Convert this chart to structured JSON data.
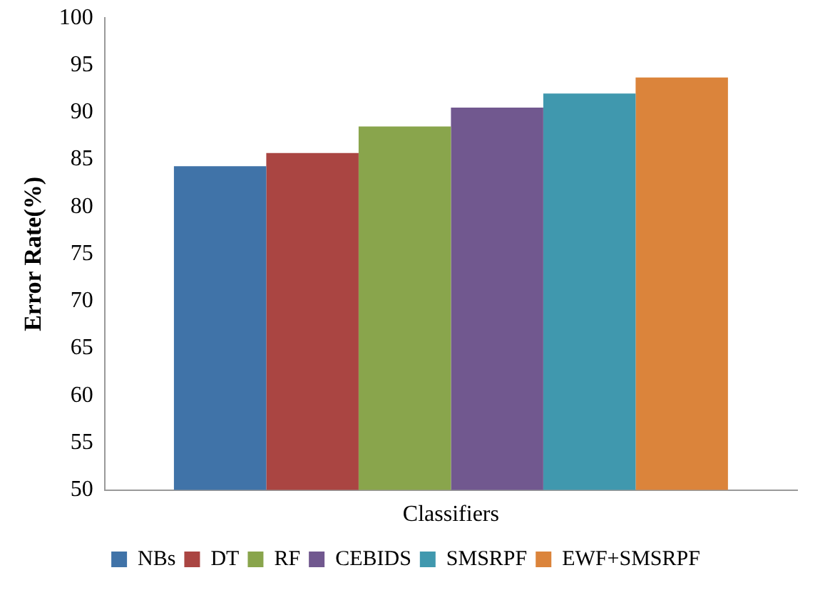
{
  "chart_data": {
    "type": "bar",
    "ylabel": "Error Rate(%)",
    "categories": [
      "Classifiers"
    ],
    "series": [
      {
        "name": "NBs",
        "color": "#4073a8",
        "values": [
          84.3
        ]
      },
      {
        "name": "DT",
        "color": "#aa4542",
        "values": [
          85.7
        ]
      },
      {
        "name": "RF",
        "color": "#89a54c",
        "values": [
          88.5
        ]
      },
      {
        "name": "CEBIDS",
        "color": "#71588f",
        "values": [
          90.5
        ]
      },
      {
        "name": "SMSRPF",
        "color": "#4098ae",
        "values": [
          92.0
        ]
      },
      {
        "name": "EWF+SMSRPF",
        "color": "#db843b",
        "values": [
          93.7
        ]
      }
    ],
    "ylim": [
      50,
      100
    ],
    "yticks": [
      50,
      55,
      60,
      65,
      70,
      75,
      80,
      85,
      90,
      95,
      100
    ],
    "grid": false,
    "legend": "bottom"
  }
}
